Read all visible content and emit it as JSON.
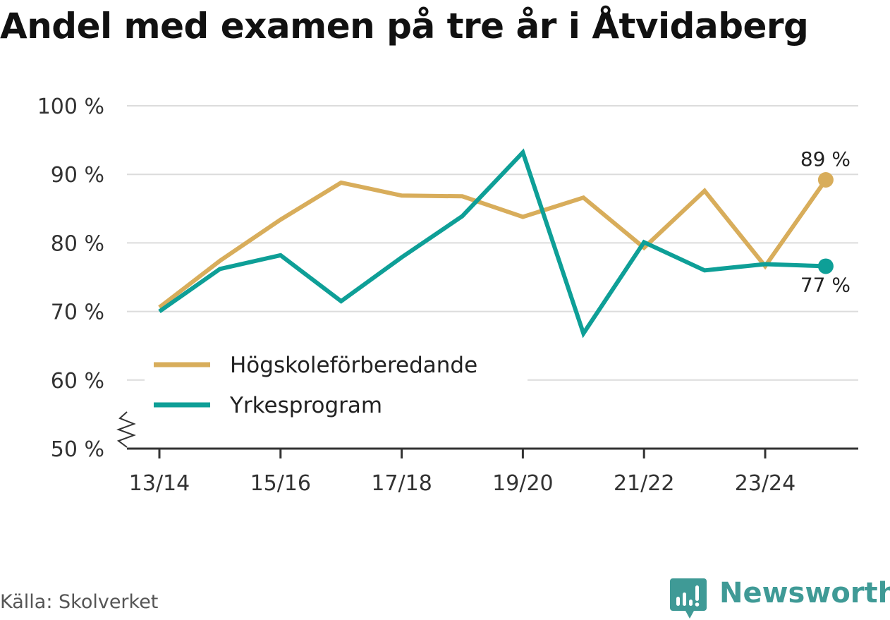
{
  "chart_data": {
    "type": "line",
    "title": "Andel med examen på tre år i Åtvidaberg",
    "x": [
      "13/14",
      "14/15",
      "15/16",
      "16/17",
      "17/18",
      "18/19",
      "19/20",
      "20/21",
      "21/22",
      "22/23",
      "23/24",
      "24/25"
    ],
    "x_tick_labels": [
      "13/14",
      "15/16",
      "17/18",
      "19/20",
      "21/22",
      "23/24"
    ],
    "y_ticks": [
      50,
      60,
      70,
      80,
      90,
      100
    ],
    "y_tick_labels": [
      "50 %",
      "60 %",
      "70 %",
      "80 %",
      "90 %",
      "100 %"
    ],
    "ylim": [
      50,
      100
    ],
    "y_axis_break": true,
    "grid": "horizontal",
    "legend_position": "center-left",
    "series": [
      {
        "name": "Högskoleförberedande",
        "color": "#d8ad5b",
        "values": [
          70.6,
          77.4,
          83.4,
          88.8,
          86.9,
          86.8,
          83.8,
          86.6,
          79.3,
          87.6,
          76.6,
          89.2
        ],
        "end_label": "89 %"
      },
      {
        "name": "Yrkesprogram",
        "color": "#0e9f97",
        "values": [
          70.0,
          76.2,
          78.2,
          71.5,
          77.9,
          83.9,
          93.2,
          66.8,
          80.1,
          76.0,
          76.9,
          76.6
        ],
        "end_label": "77 %"
      }
    ]
  },
  "footer": {
    "source": "Källa: Skolverket",
    "brand": "Newsworthy",
    "brand_color": "#3f9a96",
    "brand_icon": "newsworthy-chart-bubble-icon"
  }
}
